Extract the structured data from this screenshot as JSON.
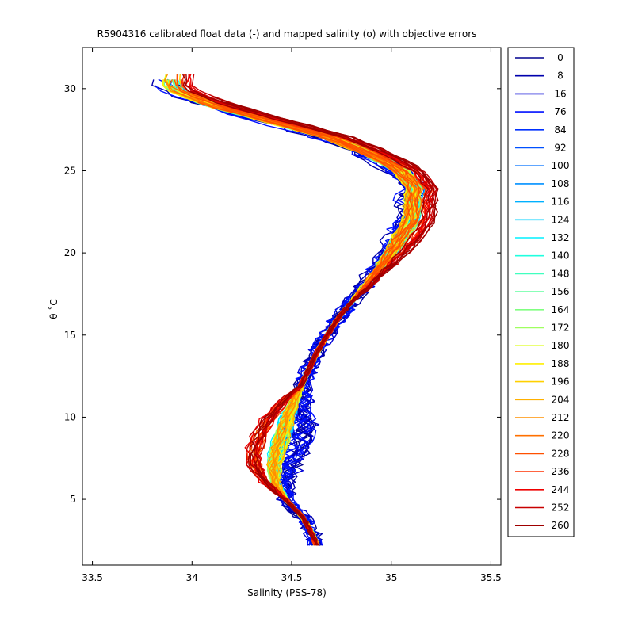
{
  "chart_data": {
    "type": "line",
    "title": "R5904316 calibrated float data (-) and mapped salinity (o) with objective errors",
    "xlabel": "Salinity (PSS-78)",
    "ylabel": "θ ˚C",
    "xlim": [
      33.45,
      35.55
    ],
    "ylim": [
      1,
      32.5
    ],
    "xticks": [
      "33.5",
      "34",
      "34.5",
      "35",
      "35.5"
    ],
    "yticks": [
      "5",
      "10",
      "15",
      "20",
      "25",
      "30"
    ],
    "grid": false,
    "legend_position": "outside-right",
    "colormap": "jet",
    "series": [
      {
        "name": "0",
        "color": "#00008f"
      },
      {
        "name": "8",
        "color": "#0000ad"
      },
      {
        "name": "16",
        "color": "#0000d6"
      },
      {
        "name": "76",
        "color": "#0010ff"
      },
      {
        "name": "84",
        "color": "#0030ff"
      },
      {
        "name": "92",
        "color": "#0050ff"
      },
      {
        "name": "100",
        "color": "#0070ff"
      },
      {
        "name": "108",
        "color": "#0090ff"
      },
      {
        "name": "116",
        "color": "#00b0ff"
      },
      {
        "name": "124",
        "color": "#00d0ff"
      },
      {
        "name": "132",
        "color": "#00f0ff"
      },
      {
        "name": "140",
        "color": "#20ffdf"
      },
      {
        "name": "148",
        "color": "#40ffbf"
      },
      {
        "name": "156",
        "color": "#60ff9f"
      },
      {
        "name": "164",
        "color": "#80ff80"
      },
      {
        "name": "172",
        "color": "#9fff60"
      },
      {
        "name": "180",
        "color": "#dfff20"
      },
      {
        "name": "188",
        "color": "#ffef00"
      },
      {
        "name": "196",
        "color": "#ffd000"
      },
      {
        "name": "204",
        "color": "#ffb000"
      },
      {
        "name": "212",
        "color": "#ff9000"
      },
      {
        "name": "220",
        "color": "#ff7000"
      },
      {
        "name": "228",
        "color": "#ff5000"
      },
      {
        "name": "236",
        "color": "#ff3000"
      },
      {
        "name": "244",
        "color": "#ef0000"
      },
      {
        "name": "252",
        "color": "#c80000"
      },
      {
        "name": "260",
        "color": "#9f0000"
      }
    ],
    "base_profile": {
      "theta": [
        2.0,
        3.0,
        4.0,
        5.0,
        6.0,
        7.0,
        8.0,
        9.0,
        10.0,
        12.0,
        14.0,
        16.0,
        18.0,
        20.0,
        22.0,
        24.0,
        25.0,
        26.0,
        27.0,
        28.0,
        29.0,
        30.0
      ],
      "salinity": [
        34.63,
        34.6,
        34.55,
        34.47,
        34.42,
        34.41,
        34.43,
        34.46,
        34.48,
        34.55,
        34.63,
        34.73,
        34.87,
        35.0,
        35.1,
        35.12,
        35.05,
        34.9,
        34.7,
        34.4,
        34.1,
        33.9
      ]
    }
  }
}
